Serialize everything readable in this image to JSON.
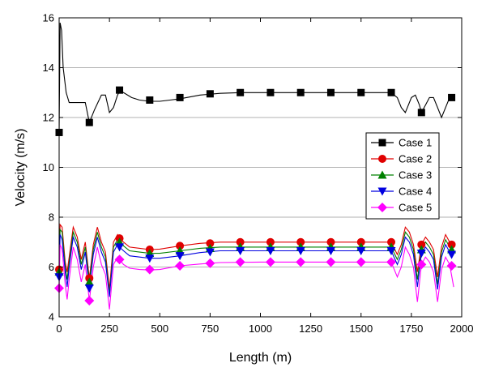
{
  "chart_data": {
    "type": "line",
    "xlabel": "Length (m)",
    "ylabel": "Velocity (m/s)",
    "xlim": [
      0,
      2000
    ],
    "ylim": [
      4,
      16
    ],
    "xticks": [
      0,
      250,
      500,
      750,
      1000,
      1250,
      1500,
      1750,
      2000
    ],
    "yticks": [
      4,
      6,
      8,
      10,
      12,
      14,
      16
    ],
    "grid": "horizontal",
    "legend": "right",
    "series": [
      {
        "name": "Case 1",
        "color": "#000000",
        "marker": "square",
        "markers": [
          [
            0,
            11.4
          ],
          [
            150,
            11.8
          ],
          [
            300,
            13.1
          ],
          [
            450,
            12.7
          ],
          [
            600,
            12.8
          ],
          [
            750,
            12.95
          ],
          [
            900,
            13.0
          ],
          [
            1050,
            13.0
          ],
          [
            1200,
            13.0
          ],
          [
            1350,
            13.0
          ],
          [
            1500,
            13.0
          ],
          [
            1650,
            13.0
          ],
          [
            1800,
            12.2
          ],
          [
            1950,
            12.8
          ]
        ],
        "line": [
          [
            0,
            11.4
          ],
          [
            5,
            15.8
          ],
          [
            12,
            15.5
          ],
          [
            20,
            14.0
          ],
          [
            35,
            13.0
          ],
          [
            50,
            12.6
          ],
          [
            100,
            12.6
          ],
          [
            130,
            12.6
          ],
          [
            150,
            11.8
          ],
          [
            175,
            12.3
          ],
          [
            210,
            12.9
          ],
          [
            230,
            12.9
          ],
          [
            250,
            12.2
          ],
          [
            270,
            12.4
          ],
          [
            290,
            12.9
          ],
          [
            300,
            13.05
          ],
          [
            320,
            13.0
          ],
          [
            360,
            12.8
          ],
          [
            400,
            12.7
          ],
          [
            450,
            12.65
          ],
          [
            500,
            12.65
          ],
          [
            550,
            12.7
          ],
          [
            600,
            12.75
          ],
          [
            700,
            12.9
          ],
          [
            800,
            12.97
          ],
          [
            900,
            13.0
          ],
          [
            1000,
            13.0
          ],
          [
            1200,
            13.0
          ],
          [
            1400,
            13.0
          ],
          [
            1600,
            13.0
          ],
          [
            1650,
            13.0
          ],
          [
            1680,
            12.8
          ],
          [
            1700,
            12.4
          ],
          [
            1720,
            12.2
          ],
          [
            1750,
            12.8
          ],
          [
            1770,
            12.9
          ],
          [
            1790,
            12.5
          ],
          [
            1800,
            12.2
          ],
          [
            1820,
            12.5
          ],
          [
            1840,
            12.8
          ],
          [
            1860,
            12.8
          ],
          [
            1880,
            12.4
          ],
          [
            1900,
            12.0
          ],
          [
            1920,
            12.4
          ],
          [
            1940,
            12.8
          ],
          [
            1960,
            12.8
          ]
        ]
      },
      {
        "name": "Case 2",
        "color": "#e00000",
        "marker": "circle",
        "markers": [
          [
            0,
            5.9
          ],
          [
            150,
            5.55
          ],
          [
            300,
            7.15
          ],
          [
            450,
            6.7
          ],
          [
            600,
            6.85
          ],
          [
            750,
            6.95
          ],
          [
            900,
            7.0
          ],
          [
            1050,
            7.0
          ],
          [
            1200,
            7.0
          ],
          [
            1350,
            7.0
          ],
          [
            1500,
            7.0
          ],
          [
            1650,
            7.0
          ],
          [
            1800,
            6.9
          ],
          [
            1950,
            6.9
          ]
        ],
        "line": [
          [
            0,
            5.9
          ],
          [
            5,
            7.7
          ],
          [
            15,
            7.6
          ],
          [
            30,
            6.2
          ],
          [
            40,
            5.8
          ],
          [
            50,
            6.4
          ],
          [
            70,
            7.6
          ],
          [
            90,
            7.2
          ],
          [
            110,
            6.3
          ],
          [
            130,
            7.0
          ],
          [
            150,
            5.55
          ],
          [
            170,
            6.9
          ],
          [
            190,
            7.6
          ],
          [
            210,
            7.0
          ],
          [
            230,
            6.6
          ],
          [
            250,
            5.1
          ],
          [
            270,
            7.0
          ],
          [
            290,
            7.3
          ],
          [
            300,
            7.15
          ],
          [
            320,
            7.0
          ],
          [
            350,
            6.8
          ],
          [
            400,
            6.75
          ],
          [
            450,
            6.7
          ],
          [
            500,
            6.72
          ],
          [
            600,
            6.85
          ],
          [
            700,
            6.95
          ],
          [
            800,
            7.0
          ],
          [
            1000,
            7.0
          ],
          [
            1200,
            7.0
          ],
          [
            1400,
            7.0
          ],
          [
            1600,
            7.0
          ],
          [
            1650,
            7.0
          ],
          [
            1680,
            6.5
          ],
          [
            1700,
            6.9
          ],
          [
            1720,
            7.6
          ],
          [
            1740,
            7.4
          ],
          [
            1760,
            6.9
          ],
          [
            1780,
            5.8
          ],
          [
            1800,
            6.9
          ],
          [
            1820,
            7.2
          ],
          [
            1840,
            7.0
          ],
          [
            1860,
            6.7
          ],
          [
            1880,
            5.6
          ],
          [
            1900,
            6.8
          ],
          [
            1920,
            7.3
          ],
          [
            1940,
            7.0
          ],
          [
            1960,
            6.9
          ]
        ]
      },
      {
        "name": "Case 3",
        "color": "#008000",
        "marker": "triangle-up",
        "markers": [
          [
            0,
            5.8
          ],
          [
            150,
            5.4
          ],
          [
            300,
            7.0
          ],
          [
            450,
            6.55
          ],
          [
            600,
            6.65
          ],
          [
            750,
            6.75
          ],
          [
            900,
            6.8
          ],
          [
            1050,
            6.8
          ],
          [
            1200,
            6.8
          ],
          [
            1350,
            6.8
          ],
          [
            1500,
            6.8
          ],
          [
            1650,
            6.8
          ],
          [
            1800,
            6.7
          ],
          [
            1950,
            6.7
          ]
        ],
        "line": [
          [
            0,
            5.8
          ],
          [
            5,
            7.5
          ],
          [
            15,
            7.4
          ],
          [
            30,
            6.0
          ],
          [
            40,
            5.5
          ],
          [
            50,
            6.2
          ],
          [
            70,
            7.4
          ],
          [
            90,
            7.0
          ],
          [
            110,
            6.1
          ],
          [
            130,
            6.8
          ],
          [
            150,
            5.4
          ],
          [
            170,
            6.7
          ],
          [
            190,
            7.4
          ],
          [
            210,
            6.8
          ],
          [
            230,
            6.4
          ],
          [
            250,
            4.9
          ],
          [
            270,
            6.8
          ],
          [
            290,
            7.1
          ],
          [
            300,
            7.0
          ],
          [
            320,
            6.85
          ],
          [
            350,
            6.65
          ],
          [
            400,
            6.6
          ],
          [
            450,
            6.55
          ],
          [
            500,
            6.55
          ],
          [
            600,
            6.65
          ],
          [
            700,
            6.75
          ],
          [
            800,
            6.8
          ],
          [
            1000,
            6.8
          ],
          [
            1200,
            6.8
          ],
          [
            1400,
            6.8
          ],
          [
            1600,
            6.8
          ],
          [
            1650,
            6.8
          ],
          [
            1680,
            6.3
          ],
          [
            1700,
            6.7
          ],
          [
            1720,
            7.4
          ],
          [
            1740,
            7.2
          ],
          [
            1760,
            6.7
          ],
          [
            1780,
            5.5
          ],
          [
            1800,
            6.7
          ],
          [
            1820,
            7.0
          ],
          [
            1840,
            6.8
          ],
          [
            1860,
            6.5
          ],
          [
            1880,
            5.3
          ],
          [
            1900,
            6.6
          ],
          [
            1920,
            7.1
          ],
          [
            1940,
            6.8
          ],
          [
            1960,
            6.7
          ]
        ]
      },
      {
        "name": "Case 4",
        "color": "#0000e0",
        "marker": "triangle-down",
        "markers": [
          [
            0,
            5.6
          ],
          [
            150,
            5.15
          ],
          [
            300,
            6.8
          ],
          [
            450,
            6.35
          ],
          [
            600,
            6.45
          ],
          [
            750,
            6.6
          ],
          [
            900,
            6.65
          ],
          [
            1050,
            6.65
          ],
          [
            1200,
            6.65
          ],
          [
            1350,
            6.65
          ],
          [
            1500,
            6.65
          ],
          [
            1650,
            6.65
          ],
          [
            1800,
            6.55
          ],
          [
            1950,
            6.5
          ]
        ],
        "line": [
          [
            0,
            5.6
          ],
          [
            5,
            7.3
          ],
          [
            15,
            7.1
          ],
          [
            30,
            5.8
          ],
          [
            40,
            5.2
          ],
          [
            50,
            6.0
          ],
          [
            70,
            7.2
          ],
          [
            90,
            6.8
          ],
          [
            110,
            5.9
          ],
          [
            130,
            6.6
          ],
          [
            150,
            5.15
          ],
          [
            170,
            6.5
          ],
          [
            190,
            7.2
          ],
          [
            210,
            6.6
          ],
          [
            230,
            6.2
          ],
          [
            250,
            4.8
          ],
          [
            270,
            6.6
          ],
          [
            290,
            6.9
          ],
          [
            300,
            6.8
          ],
          [
            320,
            6.65
          ],
          [
            350,
            6.45
          ],
          [
            400,
            6.4
          ],
          [
            450,
            6.35
          ],
          [
            500,
            6.35
          ],
          [
            600,
            6.45
          ],
          [
            700,
            6.58
          ],
          [
            800,
            6.65
          ],
          [
            1000,
            6.65
          ],
          [
            1200,
            6.65
          ],
          [
            1400,
            6.65
          ],
          [
            1600,
            6.65
          ],
          [
            1650,
            6.65
          ],
          [
            1680,
            6.1
          ],
          [
            1700,
            6.5
          ],
          [
            1720,
            7.2
          ],
          [
            1740,
            7.0
          ],
          [
            1760,
            6.5
          ],
          [
            1780,
            5.2
          ],
          [
            1800,
            6.55
          ],
          [
            1820,
            6.8
          ],
          [
            1840,
            6.6
          ],
          [
            1860,
            6.3
          ],
          [
            1880,
            5.1
          ],
          [
            1900,
            6.4
          ],
          [
            1920,
            6.9
          ],
          [
            1940,
            6.6
          ],
          [
            1960,
            6.5
          ]
        ]
      },
      {
        "name": "Case 5",
        "color": "#ff00ff",
        "marker": "diamond",
        "markers": [
          [
            0,
            5.15
          ],
          [
            150,
            4.65
          ],
          [
            300,
            6.3
          ],
          [
            450,
            5.9
          ],
          [
            600,
            6.05
          ],
          [
            750,
            6.15
          ],
          [
            900,
            6.2
          ],
          [
            1050,
            6.2
          ],
          [
            1200,
            6.2
          ],
          [
            1350,
            6.2
          ],
          [
            1500,
            6.2
          ],
          [
            1650,
            6.2
          ],
          [
            1800,
            6.1
          ],
          [
            1950,
            6.05
          ]
        ],
        "line": [
          [
            0,
            5.15
          ],
          [
            5,
            6.9
          ],
          [
            15,
            6.7
          ],
          [
            30,
            5.3
          ],
          [
            40,
            4.7
          ],
          [
            50,
            5.5
          ],
          [
            70,
            6.8
          ],
          [
            90,
            6.3
          ],
          [
            110,
            5.4
          ],
          [
            130,
            6.1
          ],
          [
            150,
            4.65
          ],
          [
            170,
            6.0
          ],
          [
            190,
            6.8
          ],
          [
            210,
            6.1
          ],
          [
            230,
            5.7
          ],
          [
            250,
            4.3
          ],
          [
            270,
            6.1
          ],
          [
            290,
            6.4
          ],
          [
            300,
            6.3
          ],
          [
            320,
            6.1
          ],
          [
            350,
            5.95
          ],
          [
            400,
            5.9
          ],
          [
            450,
            5.88
          ],
          [
            500,
            5.9
          ],
          [
            600,
            6.05
          ],
          [
            700,
            6.12
          ],
          [
            800,
            6.18
          ],
          [
            1000,
            6.2
          ],
          [
            1200,
            6.2
          ],
          [
            1400,
            6.2
          ],
          [
            1600,
            6.2
          ],
          [
            1650,
            6.2
          ],
          [
            1680,
            5.6
          ],
          [
            1700,
            6.0
          ],
          [
            1720,
            6.8
          ],
          [
            1740,
            6.5
          ],
          [
            1760,
            6.0
          ],
          [
            1780,
            4.6
          ],
          [
            1800,
            6.1
          ],
          [
            1820,
            6.4
          ],
          [
            1840,
            6.2
          ],
          [
            1860,
            5.8
          ],
          [
            1880,
            4.6
          ],
          [
            1900,
            5.9
          ],
          [
            1920,
            6.4
          ],
          [
            1940,
            6.1
          ],
          [
            1960,
            5.2
          ]
        ]
      }
    ]
  }
}
